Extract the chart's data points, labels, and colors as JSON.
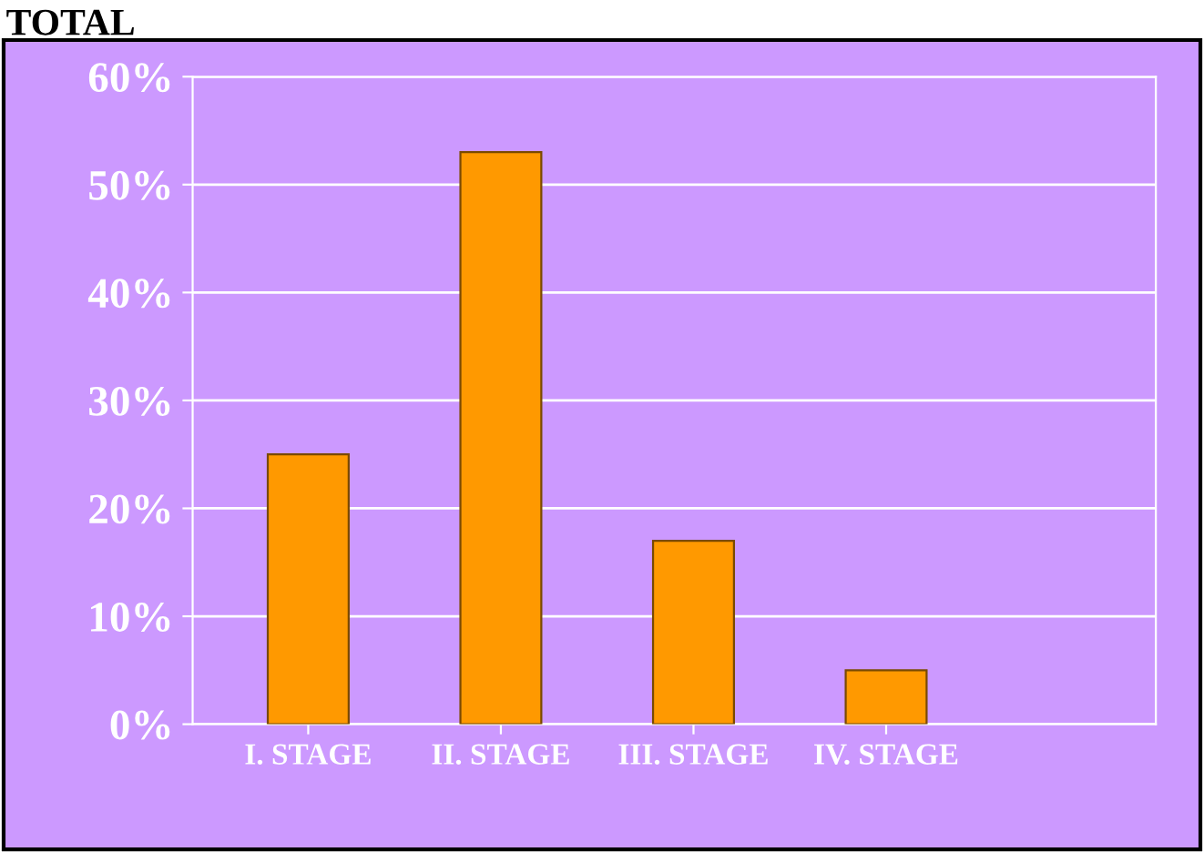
{
  "chart_data": {
    "type": "bar",
    "title": "TOTAL",
    "categories": [
      "I. STAGE",
      "II. STAGE",
      "III. STAGE",
      "IV. STAGE"
    ],
    "values": [
      25,
      53,
      17,
      5
    ],
    "color": "#ff9900",
    "ylim": [
      0,
      60
    ],
    "yticks": [
      {
        "value": 0,
        "label": "0%"
      },
      {
        "value": 10,
        "label": "10%"
      },
      {
        "value": 20,
        "label": "20%"
      },
      {
        "value": 30,
        "label": "30%"
      },
      {
        "value": 40,
        "label": "40%"
      },
      {
        "value": 50,
        "label": "50%"
      },
      {
        "value": 60,
        "label": "60%"
      }
    ],
    "grid": "y"
  }
}
